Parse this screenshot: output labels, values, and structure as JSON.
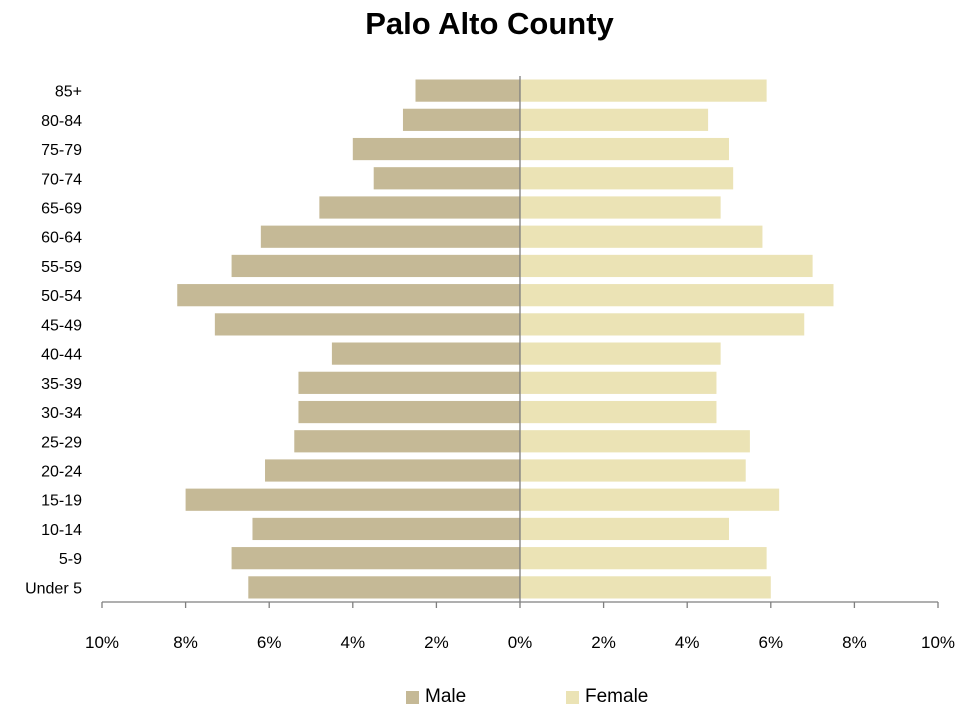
{
  "chart_data": {
    "type": "bar",
    "orientation": "horizontal",
    "title": "Palo Alto County",
    "categories": [
      "85+",
      "80-84",
      "75-79",
      "70-74",
      "65-69",
      "60-64",
      "55-59",
      "50-54",
      "45-49",
      "40-44",
      "35-39",
      "30-34",
      "25-29",
      "20-24",
      "15-19",
      "10-14",
      "5-9",
      "Under 5"
    ],
    "series": [
      {
        "name": "Male",
        "color": "#c5b996",
        "values": [
          2.5,
          2.8,
          4.0,
          3.5,
          4.8,
          6.2,
          6.9,
          8.2,
          7.3,
          4.5,
          5.3,
          5.3,
          5.4,
          6.1,
          8.0,
          6.4,
          6.9,
          6.5
        ]
      },
      {
        "name": "Female",
        "color": "#ebe3b5",
        "values": [
          5.9,
          4.5,
          5.0,
          5.1,
          4.8,
          5.8,
          7.0,
          7.5,
          6.8,
          4.8,
          4.7,
          4.7,
          5.5,
          5.4,
          6.2,
          5.0,
          5.9,
          6.0
        ]
      }
    ],
    "xlim": [
      -10,
      10
    ],
    "x_ticks": [
      -10,
      -8,
      -6,
      -4,
      -2,
      0,
      2,
      4,
      6,
      8,
      10
    ],
    "x_tick_labels": [
      "10%",
      "8%",
      "6%",
      "4%",
      "2%",
      "0%",
      "2%",
      "4%",
      "6%",
      "8%",
      "10%"
    ],
    "xlabel": "",
    "ylabel": "",
    "grid": false,
    "legend_position": "bottom"
  }
}
